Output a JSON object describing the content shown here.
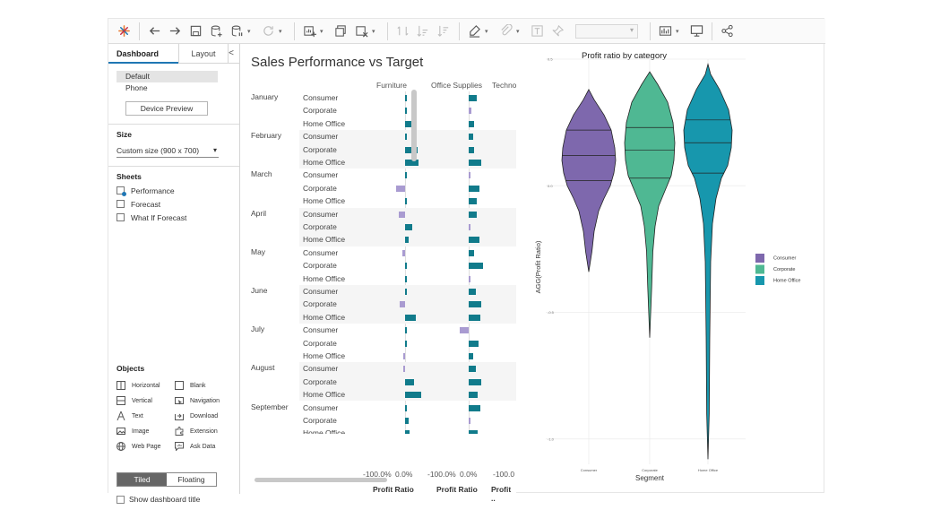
{
  "toolbar": {
    "icons": [
      "tableau-logo-icon",
      "undo-icon",
      "redo-icon",
      "save-icon",
      "new-datasource-icon",
      "pause-updates-icon",
      "refresh-icon",
      "new-sheet-icon",
      "duplicate-sheet-icon",
      "clear-sheet-icon",
      "swap-icon",
      "sort-ascending-icon",
      "sort-descending-icon",
      "highlight-icon",
      "group-icon",
      "label-icon",
      "pin-icon",
      "show-me-icon",
      "presentation-icon",
      "share-icon"
    ],
    "fit_dropdown": ""
  },
  "left_panel": {
    "tabs": [
      "Dashboard",
      "Layout"
    ],
    "collapse_glyph": "<",
    "devices": [
      "Default",
      "Phone"
    ],
    "device_preview_label": "Device Preview",
    "size_heading": "Size",
    "size_value": "Custom size (900 x 700)",
    "sheets_heading": "Sheets",
    "sheets": [
      "Performance",
      "Forecast",
      "What If Forecast"
    ],
    "objects_heading": "Objects",
    "objects": [
      {
        "label": "Horizontal",
        "icon": "horizontal-container-icon"
      },
      {
        "label": "Blank",
        "icon": "blank-icon"
      },
      {
        "label": "Vertical",
        "icon": "vertical-container-icon"
      },
      {
        "label": "Navigation",
        "icon": "navigation-icon"
      },
      {
        "label": "Text",
        "icon": "text-icon"
      },
      {
        "label": "Download",
        "icon": "download-icon"
      },
      {
        "label": "Image",
        "icon": "image-icon"
      },
      {
        "label": "Extension",
        "icon": "extension-icon"
      },
      {
        "label": "Web Page",
        "icon": "web-page-icon"
      },
      {
        "label": "Ask Data",
        "icon": "ask-data-icon"
      }
    ],
    "tiled_label": "Tiled",
    "floating_label": "Floating",
    "show_title_label": "Show dashboard title"
  },
  "sales_sheet": {
    "title": "Sales Performance vs Target",
    "columns": [
      "Furniture",
      "Office Supplies",
      "Techno"
    ],
    "axis_ticks": [
      "-100.0%",
      "0.0%",
      "-100.0%",
      "0.0%",
      "-100.0"
    ],
    "axis_titles": [
      "Profit Ratio",
      "Profit Ratio",
      "Profit .."
    ],
    "segments": [
      "Consumer",
      "Corporate",
      "Home Office"
    ],
    "months": [
      {
        "name": "January",
        "furniture": [
          0.02,
          0.02,
          0.14
        ],
        "office": [
          0.1,
          0.03,
          0.07
        ]
      },
      {
        "name": "February",
        "furniture": [
          0.02,
          0.17,
          0.18
        ],
        "office": [
          0.06,
          0.07,
          0.17
        ]
      },
      {
        "name": "March",
        "furniture": [
          0.01,
          -0.12,
          0.01
        ],
        "office": [
          0.02,
          0.14,
          0.11
        ]
      },
      {
        "name": "April",
        "furniture": [
          -0.08,
          0.09,
          0.05
        ],
        "office": [
          0.1,
          0.01,
          0.14
        ]
      },
      {
        "name": "May",
        "furniture": [
          -0.04,
          0.01,
          0.0
        ],
        "office": [
          0.07,
          0.19,
          0.01
        ]
      },
      {
        "name": "June",
        "furniture": [
          0.02,
          -0.07,
          0.14
        ],
        "office": [
          0.09,
          0.17,
          0.15
        ]
      },
      {
        "name": "July",
        "furniture": [
          0.01,
          0.02,
          -0.02
        ],
        "office": [
          -0.12,
          0.13,
          0.06
        ]
      },
      {
        "name": "August",
        "furniture": [
          -0.02,
          0.12,
          0.21
        ],
        "office": [
          0.09,
          0.17,
          0.12
        ]
      },
      {
        "name": "September",
        "furniture": [
          0.01,
          0.05,
          0.06
        ],
        "office": [
          0.15,
          0.01,
          0.12
        ]
      }
    ],
    "colors": {
      "positive": "#117b8b",
      "negative": "#a99bd1"
    }
  },
  "chart_data": {
    "type": "violin",
    "title": "Profit ratio by category",
    "xlabel": "Segment",
    "ylabel": "AGG(Profit Ratio)",
    "categories": [
      "Consumer",
      "Corporate",
      "Home Office"
    ],
    "y_ticks": [
      "0.5",
      "0.0",
      "-0.5",
      "-1.0"
    ],
    "ylim": [
      -1.1,
      0.5
    ],
    "series": [
      {
        "name": "Consumer",
        "color": "#7e68ad",
        "min": -0.34,
        "max": 0.38,
        "quartiles": [
          0.02,
          0.12,
          0.22
        ]
      },
      {
        "name": "Corporate",
        "color": "#4fb893",
        "min": -0.6,
        "max": 0.45,
        "quartiles": [
          0.03,
          0.14,
          0.23
        ]
      },
      {
        "name": "Home Office",
        "color": "#1797ad",
        "min": -1.08,
        "max": 0.48,
        "quartiles": [
          0.05,
          0.17,
          0.26
        ]
      }
    ],
    "legend": "right",
    "grid": true
  }
}
